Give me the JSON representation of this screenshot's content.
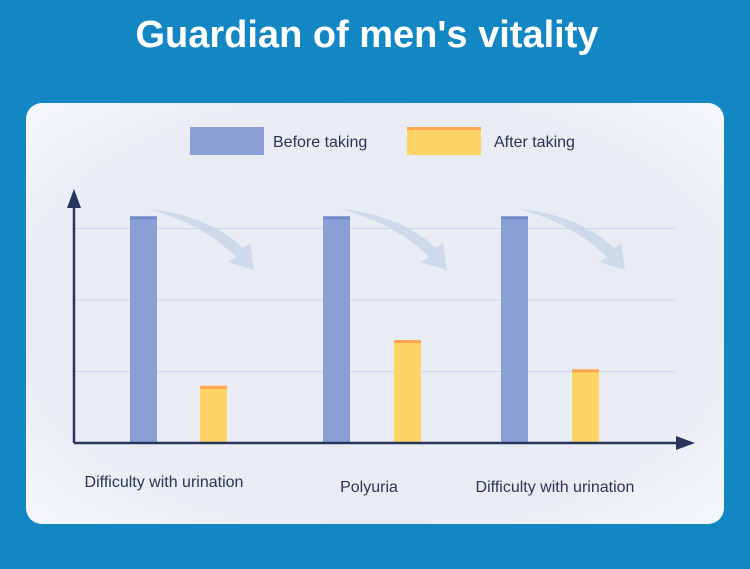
{
  "title": "Guardian of men's vitality",
  "chart_data": {
    "type": "bar",
    "title": "Guardian of men's vitality",
    "categories": [
      "Difficulty with urination",
      "Polyuria",
      "Difficulty with urination"
    ],
    "series": [
      {
        "name": "Before taking",
        "values": [
          3.17,
          3.17,
          3.17
        ],
        "color": "#8aa0d4"
      },
      {
        "name": "After taking",
        "values": [
          0.8,
          1.44,
          1.03
        ],
        "color": "#ffd466"
      }
    ],
    "xlabel": "",
    "ylabel": "",
    "ylim": [
      0,
      3.5
    ],
    "grid": true,
    "legend": "top-center"
  }
}
